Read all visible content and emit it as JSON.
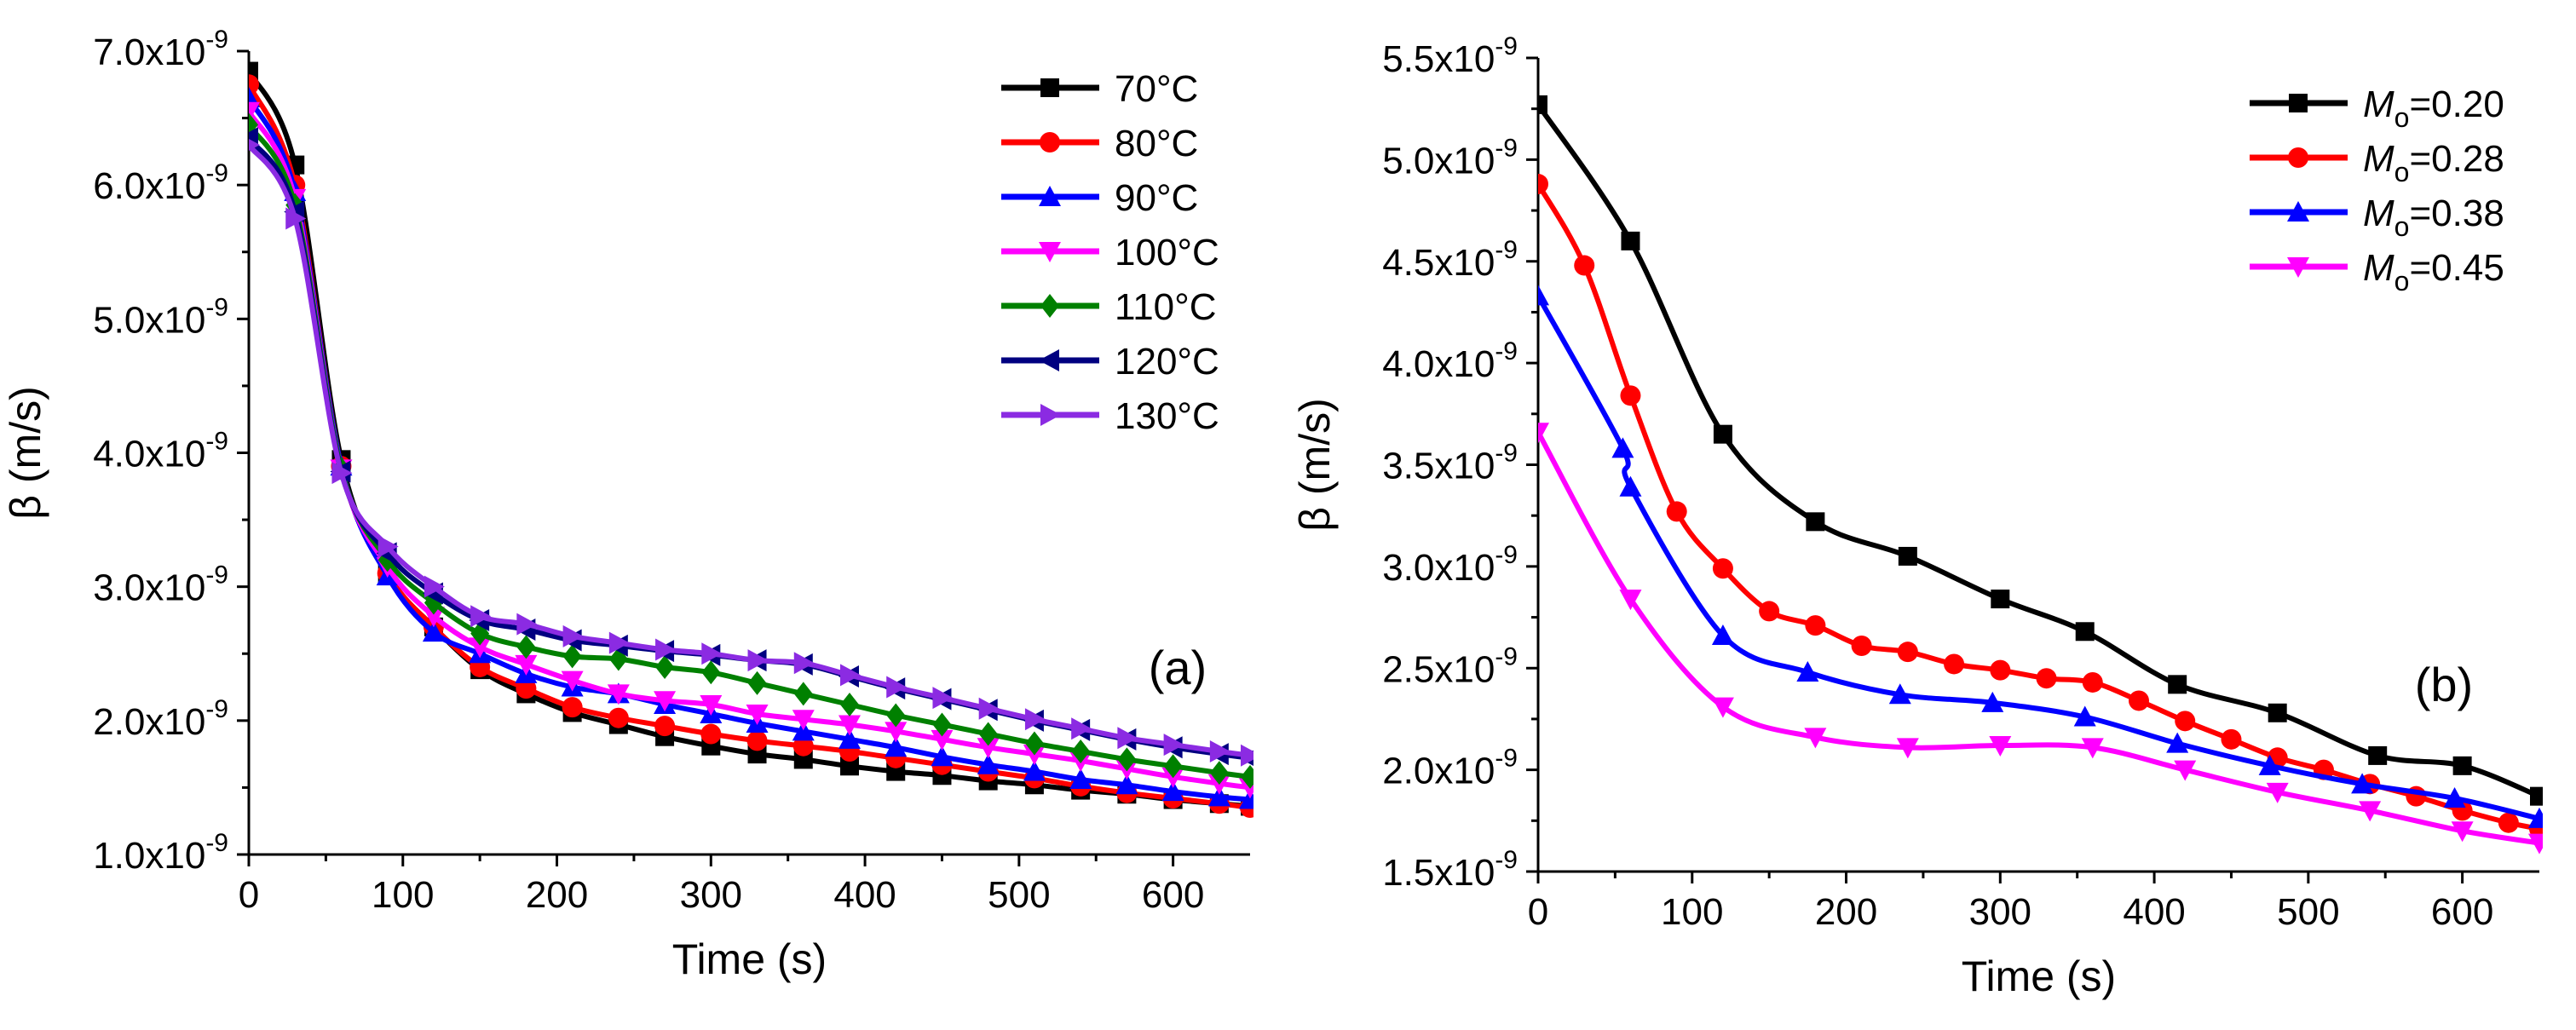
{
  "chart_data": [
    {
      "type": "line",
      "panel_label": "(a)",
      "xlabel": "Time (s)",
      "ylabel": "β (m/s)",
      "xlim": [
        0,
        650
      ],
      "ylim": [
        1e-09,
        7e-09
      ],
      "xticks": [
        0,
        100,
        200,
        300,
        400,
        500,
        600
      ],
      "xtick_labels": [
        "0",
        "100",
        "200",
        "300",
        "400",
        "500",
        "600"
      ],
      "yticks": [
        1e-09,
        2e-09,
        3e-09,
        4e-09,
        5e-09,
        6e-09,
        7e-09
      ],
      "ytick_labels": [
        {
          "mantissa": "1.0x10",
          "exponent": "-9"
        },
        {
          "mantissa": "2.0x10",
          "exponent": "-9"
        },
        {
          "mantissa": "3.0x10",
          "exponent": "-9"
        },
        {
          "mantissa": "4.0x10",
          "exponent": "-9"
        },
        {
          "mantissa": "5.0x10",
          "exponent": "-9"
        },
        {
          "mantissa": "6.0x10",
          "exponent": "-9"
        },
        {
          "mantissa": "7.0x10",
          "exponent": "-9"
        }
      ],
      "legend_position": "top-right",
      "series": [
        {
          "name": "70°C",
          "color": "#000000",
          "marker": "square",
          "x": [
            0,
            30,
            60,
            90,
            120,
            150,
            180,
            210,
            240,
            270,
            300,
            330,
            360,
            390,
            420,
            450,
            480,
            510,
            540,
            570,
            600,
            630,
            650
          ],
          "y": [
            6.85,
            6.15,
            3.95,
            3.1,
            2.7,
            2.38,
            2.2,
            2.06,
            1.97,
            1.88,
            1.81,
            1.75,
            1.71,
            1.66,
            1.62,
            1.59,
            1.55,
            1.52,
            1.48,
            1.45,
            1.41,
            1.38,
            1.36
          ]
        },
        {
          "name": "80°C",
          "color": "#ff0000",
          "marker": "circle",
          "x": [
            0,
            30,
            60,
            90,
            120,
            150,
            180,
            210,
            240,
            270,
            300,
            330,
            360,
            390,
            420,
            450,
            480,
            510,
            540,
            570,
            600,
            630,
            650
          ],
          "y": [
            6.75,
            6.0,
            3.9,
            3.1,
            2.7,
            2.4,
            2.24,
            2.1,
            2.02,
            1.96,
            1.9,
            1.85,
            1.81,
            1.77,
            1.72,
            1.67,
            1.62,
            1.57,
            1.51,
            1.46,
            1.42,
            1.38,
            1.35
          ]
        },
        {
          "name": "90°C",
          "color": "#0000ff",
          "marker": "triangle-up",
          "x": [
            0,
            30,
            60,
            90,
            120,
            150,
            180,
            210,
            240,
            270,
            300,
            330,
            360,
            390,
            420,
            450,
            480,
            510,
            540,
            570,
            600,
            630,
            650
          ],
          "y": [
            6.65,
            5.95,
            3.9,
            3.08,
            2.66,
            2.5,
            2.35,
            2.25,
            2.2,
            2.12,
            2.05,
            1.98,
            1.92,
            1.86,
            1.8,
            1.73,
            1.67,
            1.62,
            1.56,
            1.52,
            1.47,
            1.43,
            1.41
          ]
        },
        {
          "name": "100°C",
          "color": "#ff00ff",
          "marker": "triangle-down",
          "x": [
            0,
            30,
            60,
            90,
            120,
            150,
            180,
            210,
            240,
            270,
            300,
            330,
            360,
            390,
            420,
            450,
            480,
            510,
            540,
            570,
            600,
            630,
            650
          ],
          "y": [
            6.55,
            5.9,
            3.88,
            3.15,
            2.78,
            2.55,
            2.42,
            2.3,
            2.2,
            2.15,
            2.12,
            2.05,
            2.01,
            1.97,
            1.92,
            1.86,
            1.8,
            1.75,
            1.7,
            1.64,
            1.58,
            1.53,
            1.5
          ]
        },
        {
          "name": "110°C",
          "color": "#008000",
          "marker": "diamond",
          "x": [
            0,
            30,
            60,
            90,
            120,
            150,
            180,
            210,
            240,
            270,
            300,
            330,
            360,
            390,
            420,
            450,
            480,
            510,
            540,
            570,
            600,
            630,
            650
          ],
          "y": [
            6.45,
            5.85,
            3.88,
            3.2,
            2.88,
            2.65,
            2.55,
            2.48,
            2.46,
            2.4,
            2.36,
            2.28,
            2.2,
            2.12,
            2.04,
            1.97,
            1.9,
            1.83,
            1.77,
            1.71,
            1.66,
            1.61,
            1.58
          ]
        },
        {
          "name": "120°C",
          "color": "#000080",
          "marker": "triangle-left",
          "x": [
            0,
            30,
            60,
            90,
            120,
            150,
            180,
            210,
            240,
            270,
            300,
            330,
            360,
            390,
            420,
            450,
            480,
            510,
            540,
            570,
            600,
            630,
            650
          ],
          "y": [
            6.35,
            5.8,
            3.86,
            3.25,
            2.95,
            2.75,
            2.68,
            2.6,
            2.56,
            2.52,
            2.49,
            2.45,
            2.42,
            2.33,
            2.24,
            2.16,
            2.08,
            2.0,
            1.93,
            1.86,
            1.8,
            1.75,
            1.72
          ]
        },
        {
          "name": "130°C",
          "color": "#8b2be2",
          "marker": "triangle-right",
          "x": [
            0,
            30,
            60,
            90,
            120,
            150,
            180,
            210,
            240,
            270,
            300,
            330,
            360,
            390,
            420,
            450,
            480,
            510,
            540,
            570,
            600,
            630,
            650
          ],
          "y": [
            6.3,
            5.75,
            3.85,
            3.3,
            3.0,
            2.78,
            2.72,
            2.63,
            2.58,
            2.53,
            2.5,
            2.45,
            2.43,
            2.34,
            2.25,
            2.17,
            2.09,
            2.01,
            1.94,
            1.87,
            1.82,
            1.77,
            1.74
          ]
        }
      ]
    },
    {
      "type": "line",
      "panel_label": "(b)",
      "xlabel": "Time (s)",
      "ylabel": "β (m/s)",
      "xlim": [
        0,
        650
      ],
      "ylim": [
        1.5e-09,
        5.5e-09
      ],
      "xticks": [
        0,
        100,
        200,
        300,
        400,
        500,
        600
      ],
      "xtick_labels": [
        "0",
        "100",
        "200",
        "300",
        "400",
        "500",
        "600"
      ],
      "yticks": [
        1.5e-09,
        2e-09,
        2.5e-09,
        3e-09,
        3.5e-09,
        4e-09,
        4.5e-09,
        5e-09,
        5.5e-09
      ],
      "ytick_labels": [
        {
          "mantissa": "1.5x10",
          "exponent": "-9"
        },
        {
          "mantissa": "2.0x10",
          "exponent": "-9"
        },
        {
          "mantissa": "2.5x10",
          "exponent": "-9"
        },
        {
          "mantissa": "3.0x10",
          "exponent": "-9"
        },
        {
          "mantissa": "3.5x10",
          "exponent": "-9"
        },
        {
          "mantissa": "4.0x10",
          "exponent": "-9"
        },
        {
          "mantissa": "4.5x10",
          "exponent": "-9"
        },
        {
          "mantissa": "5.0x10",
          "exponent": "-9"
        },
        {
          "mantissa": "5.5x10",
          "exponent": "-9"
        }
      ],
      "legend_position": "top-right",
      "series": [
        {
          "name": "Mo=0.20",
          "legend_italic": "M",
          "legend_sub": "o",
          "legend_rest": "=0.20",
          "color": "#000000",
          "marker": "square",
          "x": [
            0,
            60,
            120,
            180,
            240,
            300,
            355,
            415,
            480,
            545,
            600,
            650
          ],
          "y": [
            5.27,
            4.6,
            3.65,
            3.22,
            3.05,
            2.84,
            2.68,
            2.42,
            2.28,
            2.07,
            2.02,
            1.87
          ]
        },
        {
          "name": "Mo=0.28",
          "legend_italic": "M",
          "legend_sub": "o",
          "legend_rest": "=0.28",
          "color": "#ff0000",
          "marker": "circle",
          "x": [
            0,
            30,
            60,
            90,
            120,
            150,
            180,
            210,
            240,
            270,
            300,
            330,
            360,
            390,
            420,
            450,
            480,
            510,
            540,
            570,
            600,
            630,
            650
          ],
          "y": [
            4.88,
            4.48,
            3.84,
            3.27,
            2.99,
            2.78,
            2.71,
            2.61,
            2.58,
            2.52,
            2.49,
            2.45,
            2.43,
            2.34,
            2.24,
            2.15,
            2.06,
            2.0,
            1.93,
            1.87,
            1.8,
            1.74,
            1.71
          ]
        },
        {
          "name": "Mo=0.38",
          "legend_italic": "M",
          "legend_sub": "o",
          "legend_rest": "=0.38",
          "color": "#0000ff",
          "marker": "triangle-up",
          "x": [
            0,
            55,
            60,
            120,
            175,
            235,
            295,
            355,
            415,
            475,
            535,
            595,
            650
          ],
          "y": [
            4.33,
            3.58,
            3.39,
            2.66,
            2.48,
            2.37,
            2.33,
            2.26,
            2.13,
            2.02,
            1.93,
            1.86,
            1.76
          ]
        },
        {
          "name": "Mo=0.45",
          "legend_italic": "M",
          "legend_sub": "o",
          "legend_rest": "=0.45",
          "color": "#ff00ff",
          "marker": "triangle-down",
          "x": [
            0,
            60,
            120,
            180,
            240,
            300,
            360,
            420,
            480,
            540,
            600,
            650
          ],
          "y": [
            3.66,
            2.84,
            2.31,
            2.16,
            2.11,
            2.12,
            2.11,
            2.0,
            1.89,
            1.8,
            1.7,
            1.64
          ]
        }
      ]
    }
  ]
}
